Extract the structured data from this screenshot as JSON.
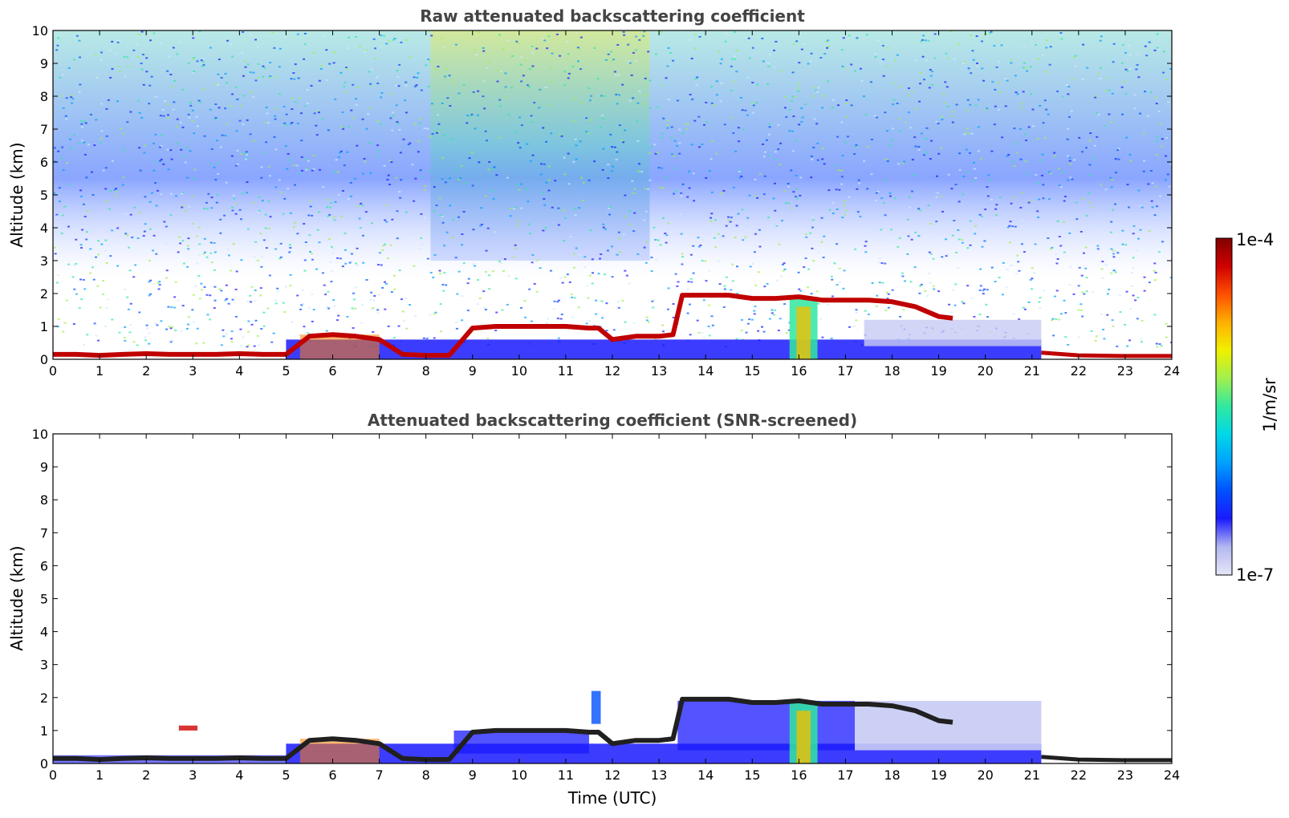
{
  "chart_data": [
    {
      "type": "heatmap",
      "title": "Raw attenuated backscattering coefficient",
      "xlabel": "",
      "ylabel": "Altitude (km)",
      "xlim": [
        0,
        24
      ],
      "ylim": [
        0,
        10
      ],
      "xticks": [
        "0",
        "1",
        "2",
        "3",
        "4",
        "5",
        "6",
        "7",
        "8",
        "9",
        "10",
        "11",
        "12",
        "13",
        "14",
        "15",
        "16",
        "17",
        "18",
        "19",
        "20",
        "21",
        "22",
        "23",
        "24"
      ],
      "yticks": [
        "0",
        "1",
        "2",
        "3",
        "4",
        "5",
        "6",
        "7",
        "8",
        "9",
        "10"
      ],
      "cloud_base_layer": {
        "x": [
          0,
          0.5,
          1,
          1.5,
          2,
          2.5,
          3,
          3.5,
          4,
          4.5,
          5,
          5.5,
          6,
          6.5,
          7,
          7.5,
          8,
          8.5,
          9,
          9.5,
          10,
          10.5,
          11,
          11.5,
          11.7,
          12,
          12.5,
          13,
          13.3,
          13.5,
          14,
          14.5,
          15,
          15.5,
          16,
          16.5,
          17,
          17.5,
          18,
          18.5,
          19,
          19.3
        ],
        "y": [
          0.15,
          0.15,
          0.12,
          0.15,
          0.17,
          0.15,
          0.15,
          0.15,
          0.17,
          0.15,
          0.15,
          0.7,
          0.75,
          0.7,
          0.6,
          0.15,
          0.12,
          0.12,
          0.95,
          1.0,
          1.0,
          1.0,
          1.0,
          0.95,
          0.95,
          0.6,
          0.7,
          0.7,
          0.75,
          1.95,
          1.95,
          1.95,
          1.85,
          1.85,
          1.9,
          1.8,
          1.8,
          1.8,
          1.75,
          1.6,
          1.3,
          1.25
        ]
      },
      "late_low_layer": {
        "x": [
          21.2,
          22,
          23,
          24
        ],
        "y": [
          0.2,
          0.12,
          0.1,
          0.1
        ]
      }
    },
    {
      "type": "heatmap",
      "title": "Attenuated backscattering coefficient (SNR-screened)",
      "xlabel": "Time (UTC)",
      "ylabel": "Altitude (km)",
      "xlim": [
        0,
        24
      ],
      "ylim": [
        0,
        10
      ],
      "xticks": [
        "0",
        "1",
        "2",
        "3",
        "4",
        "5",
        "6",
        "7",
        "8",
        "9",
        "10",
        "11",
        "12",
        "13",
        "14",
        "15",
        "16",
        "17",
        "18",
        "19",
        "20",
        "21",
        "22",
        "23",
        "24"
      ],
      "yticks": [
        "0",
        "1",
        "2",
        "3",
        "4",
        "5",
        "6",
        "7",
        "8",
        "9",
        "10"
      ]
    }
  ],
  "colorbar": {
    "label": "1/m/sr",
    "max_label": "1e-4",
    "min_label": "1e-7",
    "range": [
      1e-07,
      0.0001
    ],
    "scale": "log",
    "colors": [
      "#e6e6f8",
      "#b4b8f0",
      "#1a1aff",
      "#0050ff",
      "#00a0ff",
      "#00d8e8",
      "#30e8a0",
      "#a0f050",
      "#f0f000",
      "#ffb000",
      "#ff5000",
      "#d00000",
      "#800000"
    ]
  }
}
